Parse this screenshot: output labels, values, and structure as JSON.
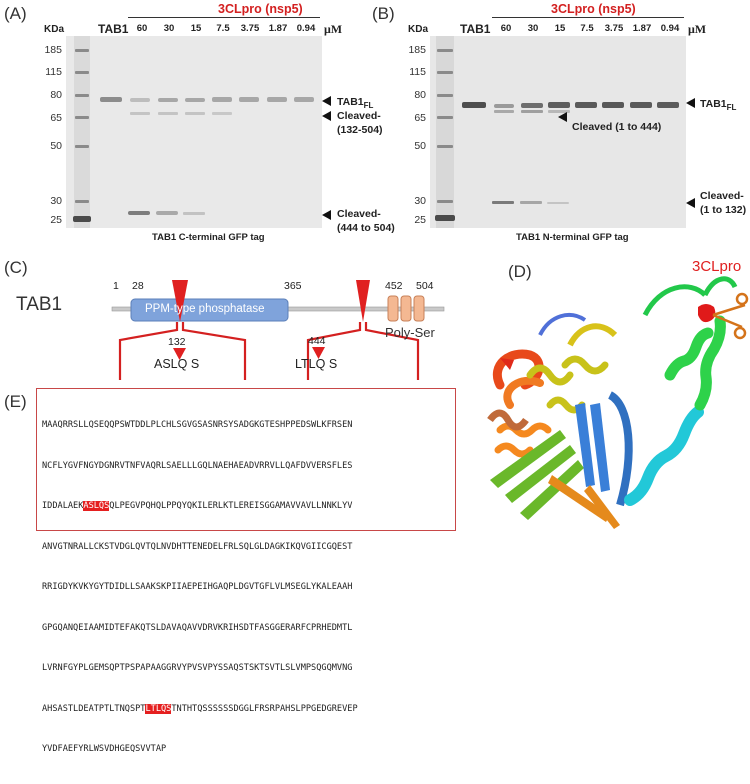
{
  "panel_labels": {
    "a": "(A)",
    "b": "(B)",
    "c": "(C)",
    "d": "(D)",
    "e": "(E)"
  },
  "gel_a": {
    "kda": "KDa",
    "tab1": "TAB1",
    "protease": "3CLpro (nsp5)",
    "unit": "μM",
    "lanes": [
      "60",
      "30",
      "15",
      "7.5",
      "3.75",
      "1.87",
      "0.94"
    ],
    "markers": [
      "185",
      "115",
      "80",
      "65",
      "50",
      "30",
      "25"
    ],
    "band_full": "TAB1",
    "band_full_sub": "FL",
    "band_cleaved1_a": "Cleaved-",
    "band_cleaved1_b": "(132-504)",
    "band_cleaved2_a": "Cleaved-",
    "band_cleaved2_b": "(444 to 504)",
    "caption": "TAB1 C-terminal GFP tag"
  },
  "gel_b": {
    "kda": "KDa",
    "tab1": "TAB1",
    "protease": "3CLpro (nsp5)",
    "unit": "μM",
    "lanes": [
      "60",
      "30",
      "15",
      "7.5",
      "3.75",
      "1.87",
      "0.94"
    ],
    "markers": [
      "185",
      "115",
      "80",
      "65",
      "50",
      "30",
      "25"
    ],
    "band_full": "TAB1",
    "band_full_sub": "FL",
    "band_cleaved1": "Cleaved (1 to 444)",
    "band_cleaved2_a": "Cleaved-",
    "band_cleaved2_b": "(1 to 132)",
    "caption": "TAB1 N-terminal GFP tag"
  },
  "domain_map": {
    "protein": "TAB1",
    "pos_1": "1",
    "pos_28": "28",
    "pos_365": "365",
    "pos_452": "452",
    "pos_504": "504",
    "ppm_label": "PPM-type phosphatase",
    "polyser_label": "Poly-Ser",
    "site1_pos": "132",
    "site1_seq": "ASLQ",
    "site1_after": "S",
    "site2_pos": "444",
    "site2_seq": "LTLQ",
    "site2_after": "S"
  },
  "structure": {
    "label": "3CLpro"
  },
  "sequence": {
    "lines": [
      [
        "MAAQRRSLLQSEQQPSWTDDLPLCHLSGVGSASNRSYSADGKGTESHPPEDSWLKFRSEN"
      ],
      [
        "NCFLYGVFNGYDGNRVTNFVAQRLSAELLLGQLNAEHAEADVRRVLLQAFDVVERSFLES"
      ],
      [
        "IDDALAEK",
        "ASLQS",
        "QLPEGVPQHQLPPQYQKILERLKTLEREISGGAMAVVAVLLNNKLYV"
      ],
      [
        "ANVGTNRALLCKSTVDGLQVTQLNVDHTTENEDELFRLSQLGLDAGKIKQVGIICGQEST"
      ],
      [
        "RRIGDYKVKYGYTDIDLLSAAKSKPIIAEPEIHGAQPLDGVTGFLVLMSEGLYKALEAAH"
      ],
      [
        "GPGQANQEIAAMIDTEFAKQTSLDAVAQAVVDRVKRIHSDTFASGGERARFCPRHEDMTL"
      ],
      [
        "LVRNFGYPLGEMSQPTPSPAPAAGGRVYPVSVPYSSAQSTSKTSVTLSLVMPSQGQMVNG"
      ],
      [
        "AHSASTLDEATPTLTNQSPT",
        "LTLQS",
        "TNTHTQSSSSSSDGGLFRSRPAHSLPPGEDGREVEP"
      ],
      [
        "YVDFAEFYRLWSVDHGEQSVVTAP"
      ]
    ]
  }
}
